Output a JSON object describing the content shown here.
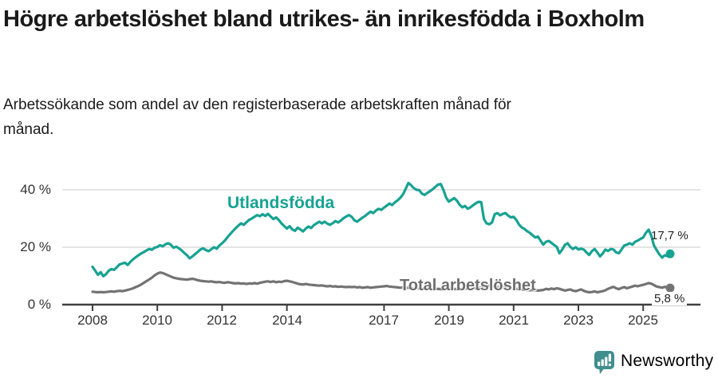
{
  "header": {
    "title": "Högre arbetslöshet bland utrikes- än inrikesfödda i Boxholm",
    "subtitle": "Arbetssökande som andel av den registerbaserade arbetskraften månad för månad."
  },
  "footer": {
    "brand": "Newsworthy",
    "brand_color": "#44908F",
    "logo_icon": "bar-chart-speech-bubble-icon"
  },
  "chart_data": {
    "type": "line",
    "title": "Högre arbetslöshet bland utrikes- än inrikesfödda i Boxholm",
    "subtitle": "Arbetssökande som andel av den registerbaserade arbetskraften månad för månad.",
    "unit": "%",
    "grid": "horizontal-only",
    "legend": "inline-series-labels",
    "x_start_year": 2008,
    "x_step_months": 1,
    "x_end": "2025-11",
    "ylim": [
      0,
      44
    ],
    "yticks": [
      {
        "value": 0,
        "label": "0 %"
      },
      {
        "value": 20,
        "label": "20 %"
      },
      {
        "value": 40,
        "label": "40 %"
      }
    ],
    "xticks": [
      {
        "value": 2008,
        "label": "2008"
      },
      {
        "value": 2010,
        "label": "2010"
      },
      {
        "value": 2012,
        "label": "2012"
      },
      {
        "value": 2014,
        "label": "2014"
      },
      {
        "value": 2017,
        "label": "2017"
      },
      {
        "value": 2019,
        "label": "2019"
      },
      {
        "value": 2021,
        "label": "2021"
      },
      {
        "value": 2023,
        "label": "2023"
      },
      {
        "value": 2025,
        "label": "2025"
      }
    ],
    "series": [
      {
        "name": "Utlandsfödda",
        "color": "#17A292",
        "end_value": 17.7,
        "end_label": "17,7 %",
        "values": [
          13.2,
          11.8,
          10.4,
          11.3,
          9.9,
          10.6,
          11.8,
          12.4,
          12.1,
          13.0,
          14.0,
          14.3,
          14.6,
          13.8,
          14.9,
          15.8,
          16.5,
          17.2,
          17.8,
          18.3,
          18.9,
          19.4,
          19.1,
          19.8,
          20.1,
          20.7,
          20.3,
          21.0,
          21.4,
          20.9,
          19.8,
          20.2,
          19.6,
          18.9,
          18.0,
          17.2,
          16.1,
          16.8,
          17.6,
          18.4,
          19.2,
          19.6,
          19.0,
          18.6,
          19.3,
          20.0,
          19.5,
          20.6,
          21.4,
          22.3,
          23.5,
          24.6,
          25.6,
          26.6,
          27.5,
          28.3,
          27.8,
          28.7,
          29.5,
          30.0,
          30.6,
          31.2,
          30.8,
          31.5,
          30.9,
          31.6,
          30.7,
          29.8,
          30.4,
          29.5,
          28.3,
          27.4,
          26.5,
          27.3,
          26.2,
          25.7,
          26.8,
          26.2,
          25.5,
          26.5,
          27.2,
          26.7,
          27.7,
          28.3,
          28.9,
          28.3,
          28.9,
          28.2,
          27.8,
          28.4,
          29.1,
          28.6,
          29.3,
          30.1,
          30.7,
          31.2,
          30.6,
          29.4,
          28.9,
          29.6,
          30.3,
          30.9,
          31.7,
          32.4,
          31.9,
          32.8,
          33.4,
          33.0,
          33.8,
          34.5,
          35.2,
          34.7,
          35.6,
          36.3,
          37.2,
          38.4,
          40.3,
          42.4,
          41.6,
          40.6,
          40.0,
          39.9,
          38.7,
          38.2,
          38.9,
          39.5,
          40.2,
          41.0,
          41.8,
          42.0,
          40.0,
          37.3,
          35.9,
          36.5,
          37.1,
          36.2,
          34.8,
          33.9,
          34.4,
          33.4,
          33.9,
          34.6,
          35.3,
          35.8,
          35.7,
          29.8,
          28.3,
          28.0,
          28.6,
          31.5,
          31.9,
          31.1,
          31.6,
          31.9,
          31.0,
          30.4,
          30.6,
          29.5,
          27.9,
          26.9,
          26.4,
          25.6,
          25.0,
          24.2,
          23.4,
          23.7,
          22.3,
          20.9,
          21.9,
          22.2,
          21.5,
          20.8,
          20.1,
          17.9,
          19.2,
          20.8,
          21.4,
          20.1,
          19.4,
          20.0,
          19.2,
          19.5,
          19.2,
          18.2,
          17.3,
          18.6,
          19.4,
          18.2,
          16.8,
          17.8,
          19.2,
          18.7,
          19.4,
          19.2,
          18.2,
          17.9,
          19.2,
          20.6,
          20.9,
          21.4,
          20.9,
          21.9,
          22.3,
          22.9,
          23.4,
          25.0,
          26.1,
          24.0,
          20.6,
          19.0,
          17.5,
          16.4,
          17.2,
          16.9,
          17.7
        ]
      },
      {
        "name": "Total arbetslöshet",
        "color": "#737373",
        "end_value": 5.8,
        "end_label": "5,8 %",
        "values": [
          4.5,
          4.4,
          4.3,
          4.4,
          4.3,
          4.4,
          4.5,
          4.6,
          4.5,
          4.7,
          4.8,
          4.7,
          4.9,
          5.1,
          5.4,
          5.7,
          6.1,
          6.5,
          7.0,
          7.6,
          8.2,
          8.8,
          9.4,
          10.2,
          10.8,
          11.2,
          11.0,
          10.6,
          10.2,
          9.8,
          9.4,
          9.2,
          9.0,
          8.9,
          8.8,
          8.7,
          8.9,
          9.0,
          8.8,
          8.5,
          8.3,
          8.2,
          8.1,
          8.0,
          8.1,
          7.9,
          7.8,
          7.9,
          7.7,
          7.6,
          7.8,
          7.7,
          7.5,
          7.4,
          7.5,
          7.3,
          7.4,
          7.2,
          7.4,
          7.3,
          7.5,
          7.3,
          7.6,
          7.8,
          8.0,
          8.1,
          7.9,
          8.1,
          7.8,
          8.0,
          7.9,
          8.2,
          8.3,
          8.1,
          7.9,
          7.6,
          7.3,
          7.1,
          7.0,
          7.2,
          7.0,
          6.9,
          6.8,
          6.7,
          6.6,
          6.7,
          6.5,
          6.4,
          6.5,
          6.3,
          6.4,
          6.2,
          6.3,
          6.2,
          6.1,
          6.2,
          6.1,
          6.2,
          6.0,
          6.1,
          5.9,
          6.0,
          6.1,
          5.9,
          6.0,
          6.1,
          6.2,
          6.3,
          6.4,
          6.5,
          6.3,
          6.2,
          6.1,
          6.0,
          5.9,
          6.0,
          5.8,
          5.9,
          5.8,
          5.7,
          5.6,
          5.7,
          5.5,
          5.6,
          5.4,
          5.5,
          5.3,
          5.4,
          5.5,
          5.4,
          5.3,
          5.4,
          5.5,
          5.6,
          5.4,
          5.5,
          5.3,
          5.4,
          5.5,
          5.6,
          5.5,
          5.7,
          5.6,
          5.8,
          5.9,
          6.1,
          6.4,
          6.6,
          6.5,
          6.4,
          6.2,
          6.1,
          6.0,
          5.9,
          5.8,
          5.7,
          5.6,
          5.5,
          5.4,
          5.3,
          5.2,
          5.1,
          5.0,
          5.1,
          5.0,
          4.9,
          5.0,
          5.1,
          5.5,
          5.3,
          5.6,
          5.4,
          5.7,
          5.5,
          5.2,
          4.9,
          5.1,
          5.3,
          4.9,
          4.7,
          5.0,
          5.3,
          4.8,
          4.5,
          4.3,
          4.4,
          4.6,
          4.3,
          4.5,
          4.7,
          5.0,
          5.5,
          5.9,
          6.2,
          5.7,
          5.4,
          5.8,
          6.1,
          5.7,
          6.0,
          6.3,
          6.6,
          6.4,
          6.7,
          6.9,
          7.2,
          7.5,
          7.3,
          6.8,
          6.3,
          6.1,
          5.9,
          6.2,
          6.0,
          5.8
        ]
      }
    ]
  }
}
